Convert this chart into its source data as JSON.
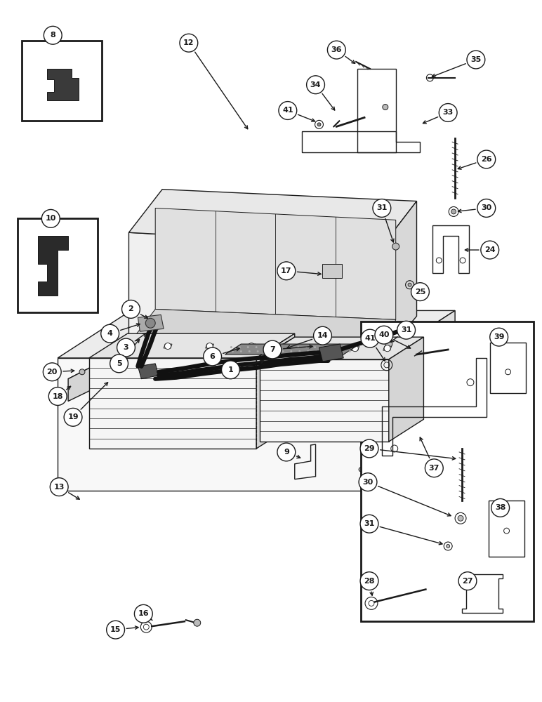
{
  "bg_color": "#ffffff",
  "lc": "#1a1a1a",
  "lw": 1.0,
  "fig_w": 7.72,
  "fig_h": 10.0,
  "dpi": 100
}
